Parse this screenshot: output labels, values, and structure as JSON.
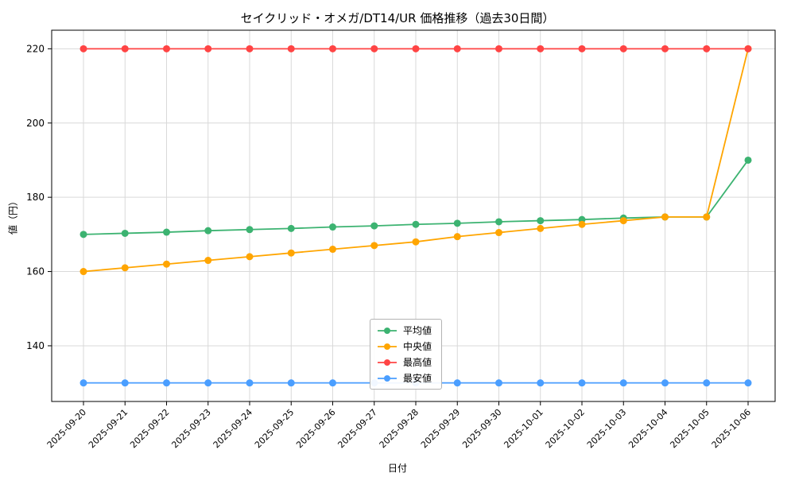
{
  "chart_data": {
    "type": "line",
    "title": "セイクリッド・オメガ/DT14/UR 価格推移（過去30日間）",
    "xlabel": "日付",
    "ylabel": "値（円）",
    "x": [
      "2025-09-20",
      "2025-09-21",
      "2025-09-22",
      "2025-09-23",
      "2025-09-24",
      "2025-09-25",
      "2025-09-26",
      "2025-09-27",
      "2025-09-28",
      "2025-09-29",
      "2025-09-30",
      "2025-10-01",
      "2025-10-02",
      "2025-10-03",
      "2025-10-04",
      "2025-10-05",
      "2025-10-06"
    ],
    "series": [
      {
        "name": "平均値",
        "color": "#3cb371",
        "values": [
          170,
          170.3,
          170.6,
          171,
          171.3,
          171.6,
          172,
          172.3,
          172.7,
          173,
          173.4,
          173.7,
          174,
          174.4,
          174.7,
          174.7,
          190
        ]
      },
      {
        "name": "中央値",
        "color": "#ffa500",
        "values": [
          160,
          161,
          162,
          163,
          164,
          165,
          166,
          167,
          168,
          169.4,
          170.5,
          171.6,
          172.7,
          173.7,
          174.7,
          174.7,
          220
        ]
      },
      {
        "name": "最高値",
        "color": "#ff4444",
        "values": [
          220,
          220,
          220,
          220,
          220,
          220,
          220,
          220,
          220,
          220,
          220,
          220,
          220,
          220,
          220,
          220,
          220
        ]
      },
      {
        "name": "最安値",
        "color": "#4a9eff",
        "values": [
          130,
          130,
          130,
          130,
          130,
          130,
          130,
          130,
          130,
          130,
          130,
          130,
          130,
          130,
          130,
          130,
          130
        ]
      }
    ],
    "ylim": [
      125,
      225
    ],
    "yticks": [
      140,
      160,
      180,
      200,
      220
    ],
    "grid": true,
    "legend_position": "lower-center"
  }
}
